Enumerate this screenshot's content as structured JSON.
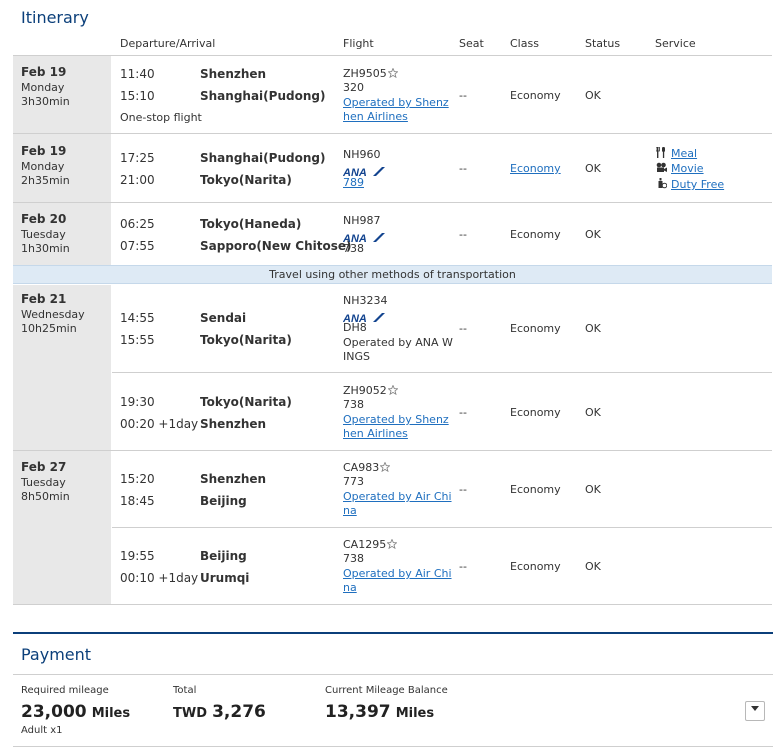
{
  "itinerary": {
    "title": "Itinerary",
    "headers": {
      "dep_arr": "Departure/Arrival",
      "flight": "Flight",
      "seat": "Seat",
      "class": "Class",
      "status": "Status",
      "service": "Service"
    },
    "groups": [
      {
        "date": "Feb 19",
        "weekday": "Monday",
        "duration": "3h30min",
        "note": "One-stop flight",
        "segments": [
          {
            "dep_time": "11:40",
            "dep_city": "Shenzhen",
            "arr_time": "15:10",
            "arr_city": "Shanghai(Pudong)",
            "flight_no": "ZH9505",
            "aircraft": "320",
            "operated_1": "Operated by Shenz",
            "operated_2": "hen Airlines",
            "seat": "--",
            "class": "Economy",
            "status": "OK"
          }
        ]
      },
      {
        "date": "Feb 19",
        "weekday": "Monday",
        "duration": "2h35min",
        "segments": [
          {
            "dep_time": "17:25",
            "dep_city": "Shanghai(Pudong)",
            "arr_time": "21:00",
            "arr_city": "Tokyo(Narita)",
            "flight_no": "NH960",
            "carrier_logo": "ANA",
            "aircraft": "789",
            "seat": "--",
            "class": "Economy",
            "status": "OK",
            "services": [
              "Meal",
              "Movie",
              "Duty Free"
            ]
          }
        ]
      },
      {
        "date": "Feb 20",
        "weekday": "Tuesday",
        "duration": "1h30min",
        "segments": [
          {
            "dep_time": "06:25",
            "dep_city": "Tokyo(Haneda)",
            "arr_time": "07:55",
            "arr_city": "Sapporo(New Chitose)",
            "flight_no": "NH987",
            "carrier_logo": "ANA",
            "aircraft": "738",
            "seat": "--",
            "class": "Economy",
            "status": "OK"
          }
        ]
      },
      {
        "banner": "Travel using other methods of transportation"
      },
      {
        "date": "Feb 21",
        "weekday": "Wednesday",
        "duration": "10h25min",
        "segments": [
          {
            "dep_time": "14:55",
            "dep_city": "Sendai",
            "arr_time": "15:55",
            "arr_city": "Tokyo(Narita)",
            "flight_no": "NH3234",
            "carrier_logo": "ANA",
            "aircraft": "DH8",
            "operated_1": "Operated by ANA W",
            "operated_2": "INGS",
            "seat": "--",
            "class": "Economy",
            "status": "OK"
          },
          {
            "dep_time": "19:30",
            "dep_city": "Tokyo(Narita)",
            "arr_time": "00:20 +1day",
            "arr_city": "Shenzhen",
            "flight_no": "ZH9052",
            "aircraft": "738",
            "operated_1": "Operated by Shenz",
            "operated_2": "hen Airlines",
            "seat": "--",
            "class": "Economy",
            "status": "OK"
          }
        ]
      },
      {
        "date": "Feb 27",
        "weekday": "Tuesday",
        "duration": "8h50min",
        "segments": [
          {
            "dep_time": "15:20",
            "dep_city": "Shenzhen",
            "arr_time": "18:45",
            "arr_city": "Beijing",
            "flight_no": "CA983",
            "aircraft": "773",
            "operated_1": "Operated by Air Chi",
            "operated_2": "na",
            "seat": "--",
            "class": "Economy",
            "status": "OK"
          },
          {
            "dep_time": "19:55",
            "dep_city": "Beijing",
            "arr_time": "00:10 +1day",
            "arr_city": "Urumqi",
            "flight_no": "CA1295",
            "aircraft": "738",
            "operated_1": "Operated by Air Chi",
            "operated_2": "na",
            "seat": "--",
            "class": "Economy",
            "status": "OK"
          }
        ]
      }
    ]
  },
  "payment": {
    "title": "Payment",
    "required_mileage_label": "Required mileage",
    "required_mileage_value": "23,000",
    "miles_unit": "Miles",
    "adult": "Adult x1",
    "total_label": "Total",
    "total_currency": "TWD",
    "total_value": "3,276",
    "balance_label": "Current Mileage Balance",
    "balance_value": "13,397",
    "dropdown_icon": "chevron-down-icon"
  },
  "colors": {
    "title_blue": "#0b3f7a",
    "link_blue": "#1f6fbf",
    "banner_bg": "#deeaf5",
    "date_col_bg": "#e8e8e8"
  }
}
